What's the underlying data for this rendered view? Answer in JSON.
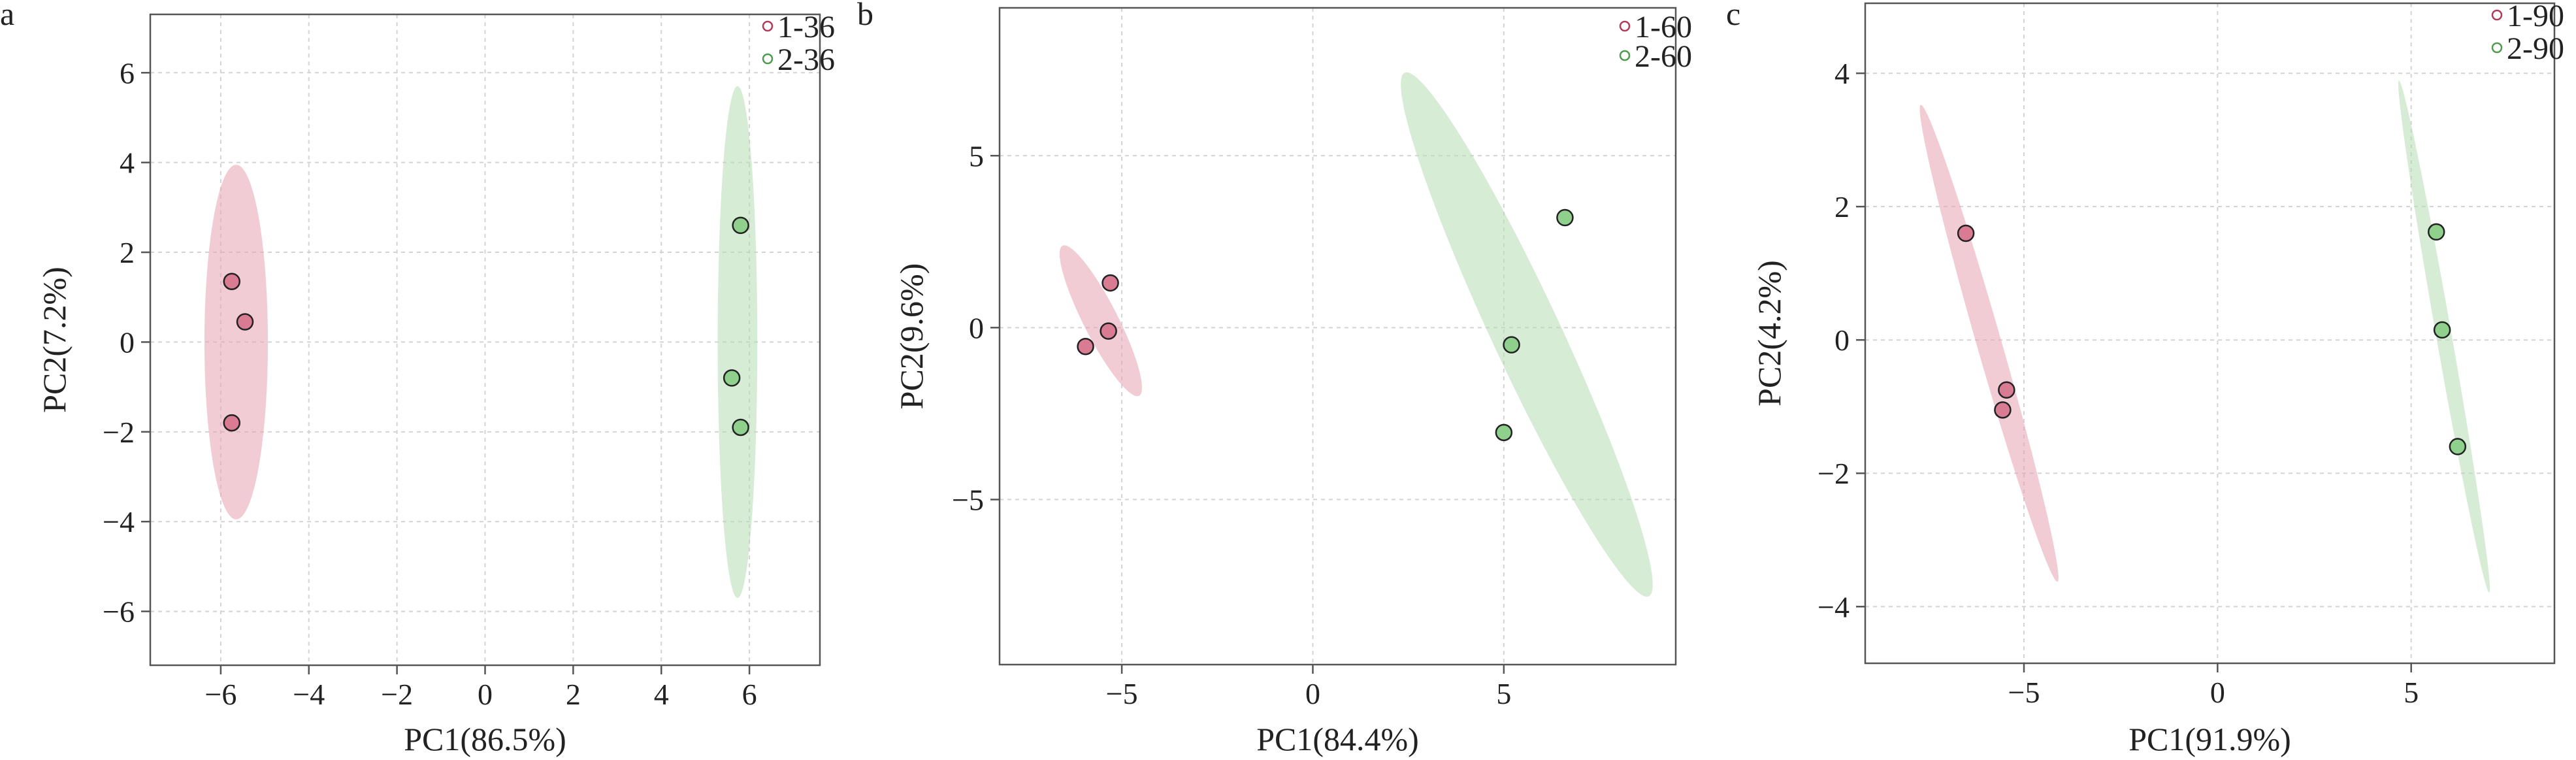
{
  "colors": {
    "group1_fill": "#e8a3b3",
    "group1_point": "#d97b92",
    "group1_stroke": "#b03a5a",
    "group2_fill": "#b5dcb3",
    "group2_point": "#8fd08c",
    "group2_stroke": "#4f9a4c"
  },
  "chart_data": [
    {
      "type": "scatter",
      "panel_label": "a",
      "xlabel": "PC1(86.5%)",
      "ylabel": "PC2(7.2%)",
      "xlim": [
        -7.6,
        7.6
      ],
      "ylim": [
        -7.2,
        7.3
      ],
      "xticks": [
        -6,
        -4,
        -2,
        0,
        2,
        4,
        6
      ],
      "xtick_labels": [
        "−6",
        "−4",
        "−2",
        "0",
        "2",
        "4",
        "6"
      ],
      "yticks": [
        -6,
        -4,
        -2,
        0,
        2,
        4,
        6
      ],
      "ytick_labels": [
        "−6",
        "−4",
        "−2",
        "0",
        "2",
        "4",
        "6"
      ],
      "grid": true,
      "legend_position": "top-right, outside",
      "series": [
        {
          "name": "1-36",
          "color": "group1",
          "points": [
            [
              -5.75,
              1.35
            ],
            [
              -5.45,
              0.45
            ],
            [
              -5.75,
              -1.8
            ]
          ]
        },
        {
          "name": "2-36",
          "color": "group2",
          "points": [
            [
              5.8,
              2.6
            ],
            [
              5.6,
              -0.8
            ],
            [
              5.8,
              -1.9
            ]
          ]
        }
      ],
      "ellipses": [
        {
          "series": "1-36",
          "cx": -5.65,
          "cy": 0.0,
          "rx": 0.72,
          "ry": 3.95,
          "angle": 0
        },
        {
          "series": "2-36",
          "cx": 5.73,
          "cy": 0.0,
          "rx": 0.45,
          "ry": 5.7,
          "angle": 0
        }
      ]
    },
    {
      "type": "scatter",
      "panel_label": "b",
      "xlabel": "PC1(84.4%)",
      "ylabel": "PC2(9.6%)",
      "xlim": [
        -8.2,
        9.5
      ],
      "ylim": [
        -9.8,
        9.3
      ],
      "xticks": [
        -5,
        0,
        5
      ],
      "xtick_labels": [
        "−5",
        "0",
        "5"
      ],
      "yticks": [
        -5,
        0,
        5
      ],
      "ytick_labels": [
        "−5",
        "0",
        "5"
      ],
      "grid": true,
      "legend_position": "top-right, inside",
      "series": [
        {
          "name": "1-60",
          "color": "group1",
          "points": [
            [
              -5.3,
              1.3
            ],
            [
              -5.35,
              -0.1
            ],
            [
              -5.95,
              -0.55
            ]
          ]
        },
        {
          "name": "2-60",
          "color": "group2",
          "points": [
            [
              6.6,
              3.2
            ],
            [
              5.2,
              -0.5
            ],
            [
              5.0,
              -3.05
            ]
          ]
        }
      ],
      "ellipses": [
        {
          "series": "1-60",
          "cx": -5.55,
          "cy": 0.2,
          "rx": 0.45,
          "ry": 2.45,
          "angle": -27
        },
        {
          "series": "2-60",
          "cx": 5.6,
          "cy": -0.2,
          "rx": 0.9,
          "ry": 8.4,
          "angle": -25
        }
      ]
    },
    {
      "type": "scatter",
      "panel_label": "c",
      "xlabel": "PC1(91.9%)",
      "ylabel": "PC2(4.2%)",
      "xlim": [
        -9.1,
        8.7
      ],
      "ylim": [
        -4.85,
        5.05
      ],
      "xticks": [
        -5,
        0,
        5
      ],
      "xtick_labels": [
        "−5",
        "0",
        "5"
      ],
      "yticks": [
        -4,
        -2,
        0,
        2,
        4
      ],
      "ytick_labels": [
        "−4",
        "−2",
        "0",
        "2",
        "4"
      ],
      "grid": true,
      "legend_position": "top-right, outside",
      "series": [
        {
          "name": "1-90",
          "color": "group1",
          "points": [
            [
              -6.5,
              1.6
            ],
            [
              -5.45,
              -0.75
            ],
            [
              -5.55,
              -1.05
            ]
          ]
        },
        {
          "name": "2-90",
          "color": "group2",
          "points": [
            [
              5.65,
              1.62
            ],
            [
              5.8,
              0.15
            ],
            [
              6.2,
              -1.6
            ]
          ]
        }
      ],
      "ellipses": [
        {
          "series": "1-90",
          "cx": -5.9,
          "cy": -0.05,
          "rx": 0.32,
          "ry": 3.72,
          "angle": -16
        },
        {
          "series": "2-90",
          "cx": 5.85,
          "cy": 0.05,
          "rx": 0.2,
          "ry": 3.9,
          "angle": -10
        }
      ]
    }
  ]
}
